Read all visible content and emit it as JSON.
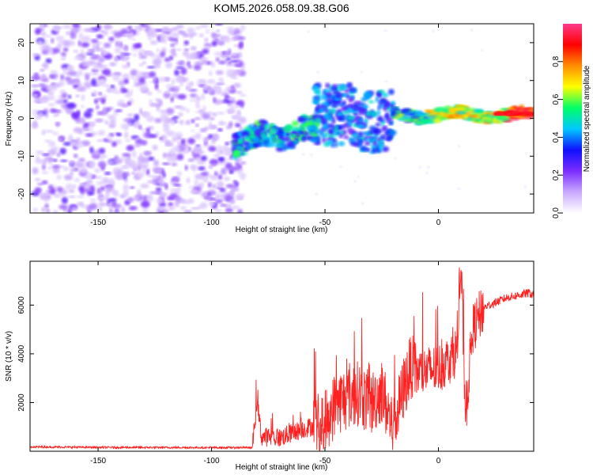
{
  "title": "KOM5.2026.058.09.38.G06",
  "chart_data": [
    {
      "type": "heatmap",
      "name": "spectrogram",
      "xlabel": "Height of straight line (km)",
      "ylabel": "Frequency (Hz)",
      "xlim": [
        -180,
        42
      ],
      "ylim": [
        -25,
        25
      ],
      "xticks": [
        -150,
        -100,
        -50,
        0
      ],
      "yticks": [
        -20,
        -10,
        0,
        10,
        20
      ],
      "colorbar": {
        "label": "Normalized spectral amplitude",
        "range": [
          0,
          1
        ],
        "ticks": [
          0.0,
          0.2,
          0.4,
          0.6,
          0.8
        ],
        "colors": [
          "#ffffff",
          "#c9a8ff",
          "#7a2cff",
          "#1010ff",
          "#00c8ff",
          "#00ff66",
          "#ffff00",
          "#ff8c00",
          "#ff0000",
          "#ff3a8c"
        ]
      },
      "regions": [
        {
          "x_range": [
            -178,
            -85
          ],
          "f_range": [
            -25,
            25
          ],
          "amplitude": 0.1,
          "description": "diffuse noise"
        },
        {
          "x_range": [
            -90,
            -55
          ],
          "f_center": -5,
          "f_width": 5,
          "amplitude": 0.45
        },
        {
          "x_range": [
            -55,
            -20
          ],
          "f_center": 2,
          "f_width": 8,
          "amplitude": 0.3
        },
        {
          "x_range": [
            -20,
            42
          ],
          "f_center": 1,
          "f_width": 2,
          "amplitude": 0.95
        }
      ]
    },
    {
      "type": "line",
      "name": "snr",
      "xlabel": "Height of straight line (km)",
      "ylabel": "SNR (10 * v/v)",
      "xlim": [
        -180,
        42
      ],
      "ylim": [
        0,
        7800
      ],
      "xticks": [
        -150,
        -100,
        -50,
        0
      ],
      "yticks": [
        2000,
        4000,
        6000
      ],
      "color": "#ff0000",
      "series": [
        {
          "name": "SNR",
          "x": [
            -180,
            -150,
            -100,
            -82,
            -80,
            -78,
            -70,
            -60,
            -50,
            -45,
            -40,
            -35,
            -30,
            -25,
            -20,
            -15,
            -12,
            -10,
            -5,
            0,
            5,
            8,
            10,
            12,
            15,
            20,
            25,
            30,
            35,
            40,
            42
          ],
          "y": [
            180,
            160,
            150,
            150,
            2100,
            600,
            550,
            900,
            1200,
            2000,
            2200,
            2400,
            1900,
            2500,
            900,
            2700,
            3500,
            3200,
            3300,
            3400,
            3800,
            4100,
            7600,
            1400,
            5000,
            5900,
            6100,
            6300,
            6400,
            6500,
            6400
          ]
        }
      ]
    }
  ]
}
